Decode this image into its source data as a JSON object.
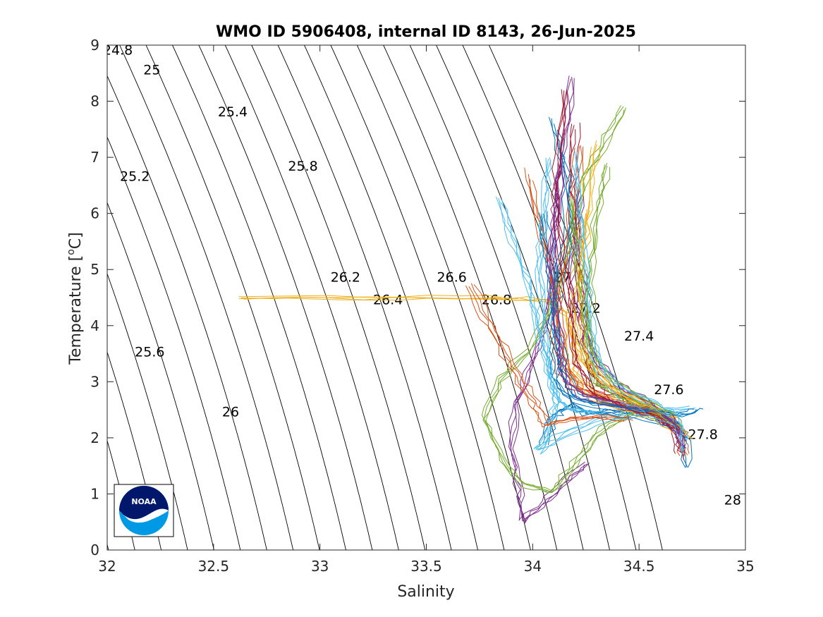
{
  "chart_data": {
    "type": "scatter",
    "title": "WMO ID 5906408, internal ID 8143, 26-Jun-2025",
    "xlabel": "Salinity",
    "ylabel": "Temperature [oC]",
    "ylabel_main": "Temperature [",
    "ylabel_sup": "o",
    "ylabel_unit": "C]",
    "xlim": [
      32,
      35
    ],
    "ylim": [
      0,
      9
    ],
    "xticks": [
      "32",
      "32.5",
      "33",
      "33.5",
      "34",
      "34.5",
      "35"
    ],
    "yticks": [
      "0",
      "1",
      "2",
      "3",
      "4",
      "5",
      "6",
      "7",
      "8",
      "9"
    ],
    "grid": false,
    "isopycnal_labels": [
      {
        "text": "24.8",
        "s": 32.05,
        "t": 8.9
      },
      {
        "text": "25",
        "s": 32.21,
        "t": 8.55
      },
      {
        "text": "25.2",
        "s": 32.13,
        "t": 6.65
      },
      {
        "text": "25.4",
        "s": 32.59,
        "t": 7.8
      },
      {
        "text": "25.6",
        "s": 32.2,
        "t": 3.52
      },
      {
        "text": "25.8",
        "s": 32.92,
        "t": 6.83
      },
      {
        "text": "26",
        "s": 32.58,
        "t": 2.45
      },
      {
        "text": "26.2",
        "s": 33.12,
        "t": 4.85
      },
      {
        "text": "26.4",
        "s": 33.32,
        "t": 4.45
      },
      {
        "text": "26.6",
        "s": 33.62,
        "t": 4.85
      },
      {
        "text": "26.8",
        "s": 33.83,
        "t": 4.45
      },
      {
        "text": "27",
        "s": 34.14,
        "t": 4.85
      },
      {
        "text": "27.2",
        "s": 34.25,
        "t": 4.3
      },
      {
        "text": "27.4",
        "s": 34.5,
        "t": 3.8
      },
      {
        "text": "27.6",
        "s": 34.64,
        "t": 2.85
      },
      {
        "text": "27.8",
        "s": 34.8,
        "t": 2.05
      },
      {
        "text": "28",
        "s": 34.94,
        "t": 0.88
      }
    ],
    "series": [
      {
        "color": "#0072BD",
        "points": [
          [
            34.05,
            1.9
          ],
          [
            34.08,
            2.3
          ],
          [
            34.12,
            2.5
          ],
          [
            34.18,
            2.6
          ],
          [
            34.25,
            2.45
          ],
          [
            34.35,
            2.5
          ],
          [
            34.5,
            2.45
          ],
          [
            34.62,
            2.3
          ],
          [
            34.7,
            2.1
          ],
          [
            34.72,
            1.5
          ]
        ]
      },
      {
        "color": "#D95319",
        "points": [
          [
            34.22,
            7.2
          ],
          [
            34.2,
            6.2
          ],
          [
            34.16,
            5.3
          ],
          [
            34.12,
            4.5
          ],
          [
            34.1,
            3.8
          ],
          [
            34.14,
            3.2
          ],
          [
            34.2,
            2.9
          ],
          [
            34.35,
            2.7
          ],
          [
            34.5,
            2.55
          ],
          [
            34.64,
            2.35
          ],
          [
            34.7,
            2.1
          ],
          [
            34.71,
            1.7
          ]
        ]
      },
      {
        "color": "#EDB120",
        "points": [
          [
            32.62,
            4.48
          ],
          [
            33.2,
            4.48
          ],
          [
            33.8,
            4.48
          ],
          [
            34.05,
            4.45
          ],
          [
            34.15,
            4.2
          ],
          [
            34.22,
            3.4
          ],
          [
            34.35,
            2.9
          ],
          [
            34.5,
            2.6
          ],
          [
            34.65,
            2.4
          ],
          [
            34.72,
            2.0
          ]
        ]
      },
      {
        "color": "#7E2F8E",
        "points": [
          [
            34.18,
            8.4
          ],
          [
            34.16,
            7.4
          ],
          [
            34.12,
            6.5
          ],
          [
            34.1,
            5.6
          ],
          [
            34.08,
            4.7
          ],
          [
            34.05,
            3.9
          ],
          [
            34.0,
            3.3
          ],
          [
            33.92,
            2.6
          ],
          [
            33.9,
            1.8
          ],
          [
            33.93,
            1.1
          ],
          [
            33.95,
            0.5
          ],
          [
            34.05,
            0.8
          ],
          [
            34.15,
            1.2
          ],
          [
            34.25,
            1.5
          ]
        ]
      },
      {
        "color": "#77AC30",
        "points": [
          [
            34.43,
            7.85
          ],
          [
            34.35,
            7.3
          ],
          [
            34.25,
            6.6
          ],
          [
            34.2,
            5.8
          ],
          [
            34.15,
            5.0
          ],
          [
            34.08,
            4.2
          ],
          [
            33.98,
            3.5
          ],
          [
            33.85,
            3.0
          ],
          [
            33.78,
            2.3
          ],
          [
            33.85,
            1.6
          ],
          [
            33.97,
            1.1
          ],
          [
            34.1,
            1.0
          ],
          [
            34.2,
            1.5
          ],
          [
            34.3,
            2.0
          ],
          [
            34.45,
            2.4
          ],
          [
            34.6,
            2.35
          ]
        ]
      },
      {
        "color": "#4DBEEE",
        "points": [
          [
            33.85,
            6.2
          ],
          [
            33.92,
            5.4
          ],
          [
            33.98,
            4.8
          ],
          [
            34.02,
            4.1
          ],
          [
            34.06,
            3.5
          ],
          [
            34.1,
            3.0
          ],
          [
            34.12,
            2.6
          ],
          [
            34.1,
            2.2
          ],
          [
            34.03,
            1.7
          ],
          [
            34.15,
            2.0
          ],
          [
            34.35,
            2.3
          ],
          [
            34.55,
            2.4
          ],
          [
            34.75,
            2.45
          ]
        ]
      },
      {
        "color": "#A2142F",
        "points": [
          [
            34.2,
            7.5
          ],
          [
            34.18,
            6.6
          ],
          [
            34.2,
            5.7
          ],
          [
            34.22,
            4.9
          ],
          [
            34.24,
            4.2
          ],
          [
            34.25,
            3.6
          ],
          [
            34.28,
            3.1
          ],
          [
            34.35,
            2.8
          ],
          [
            34.5,
            2.55
          ],
          [
            34.62,
            2.3
          ],
          [
            34.68,
            2.0
          ],
          [
            34.7,
            1.6
          ]
        ]
      },
      {
        "color": "#0072BD",
        "points": [
          [
            34.1,
            7.6
          ],
          [
            34.15,
            6.8
          ],
          [
            34.18,
            5.9
          ],
          [
            34.14,
            5.1
          ],
          [
            34.1,
            4.3
          ],
          [
            34.12,
            3.6
          ],
          [
            34.1,
            3.0
          ],
          [
            34.2,
            2.6
          ],
          [
            34.4,
            2.5
          ],
          [
            34.6,
            2.35
          ],
          [
            34.72,
            2.1
          ]
        ]
      },
      {
        "color": "#D95319",
        "points": [
          [
            33.98,
            6.7
          ],
          [
            34.02,
            5.9
          ],
          [
            34.08,
            5.0
          ],
          [
            34.12,
            4.1
          ],
          [
            34.16,
            3.4
          ],
          [
            34.22,
            2.9
          ],
          [
            34.34,
            2.7
          ],
          [
            34.48,
            2.55
          ],
          [
            34.6,
            2.4
          ]
        ]
      },
      {
        "color": "#EDB120",
        "points": [
          [
            34.3,
            7.3
          ],
          [
            34.26,
            6.4
          ],
          [
            34.24,
            5.5
          ],
          [
            34.2,
            4.6
          ],
          [
            34.18,
            3.8
          ],
          [
            34.2,
            3.2
          ],
          [
            34.3,
            2.8
          ],
          [
            34.45,
            2.6
          ],
          [
            34.58,
            2.45
          ],
          [
            34.68,
            2.2
          ]
        ]
      },
      {
        "color": "#7E2F8E",
        "points": [
          [
            34.22,
            6.4
          ],
          [
            34.2,
            5.6
          ],
          [
            34.18,
            4.8
          ],
          [
            34.22,
            4.1
          ],
          [
            34.28,
            3.5
          ],
          [
            34.4,
            3.0
          ],
          [
            34.55,
            2.65
          ],
          [
            34.66,
            2.3
          ],
          [
            34.71,
            1.9
          ]
        ]
      },
      {
        "color": "#77AC30",
        "points": [
          [
            34.35,
            6.9
          ],
          [
            34.3,
            6.0
          ],
          [
            34.28,
            5.2
          ],
          [
            34.27,
            4.4
          ],
          [
            34.26,
            3.6
          ],
          [
            34.3,
            3.0
          ],
          [
            34.45,
            2.7
          ],
          [
            34.6,
            2.45
          ],
          [
            34.7,
            2.2
          ]
        ]
      },
      {
        "color": "#4DBEEE",
        "points": [
          [
            34.08,
            7.0
          ],
          [
            34.06,
            6.2
          ],
          [
            34.04,
            5.4
          ],
          [
            34.04,
            4.6
          ],
          [
            34.06,
            3.8
          ],
          [
            34.08,
            3.2
          ],
          [
            34.12,
            2.7
          ],
          [
            34.2,
            2.5
          ],
          [
            34.35,
            2.45
          ]
        ]
      },
      {
        "color": "#A2142F",
        "points": [
          [
            34.16,
            8.2
          ],
          [
            34.14,
            7.2
          ],
          [
            34.12,
            6.3
          ],
          [
            34.14,
            5.4
          ],
          [
            34.18,
            4.6
          ],
          [
            34.2,
            3.9
          ],
          [
            34.22,
            3.3
          ],
          [
            34.3,
            2.8
          ],
          [
            34.45,
            2.55
          ],
          [
            34.58,
            2.4
          ],
          [
            34.68,
            2.15
          ]
        ]
      },
      {
        "color": "#0072BD",
        "points": [
          [
            34.05,
            6.0
          ],
          [
            34.08,
            5.2
          ],
          [
            34.1,
            4.4
          ],
          [
            34.12,
            3.7
          ],
          [
            34.15,
            3.1
          ],
          [
            34.2,
            2.75
          ],
          [
            34.3,
            2.6
          ],
          [
            34.5,
            2.5
          ],
          [
            34.7,
            2.4
          ],
          [
            34.78,
            2.5
          ]
        ]
      },
      {
        "color": "#D95319",
        "points": [
          [
            33.7,
            4.7
          ],
          [
            33.78,
            4.1
          ],
          [
            33.85,
            3.6
          ],
          [
            33.92,
            3.1
          ],
          [
            34.0,
            2.6
          ],
          [
            34.06,
            2.2
          ],
          [
            34.15,
            2.3
          ],
          [
            34.3,
            2.35
          ],
          [
            34.45,
            2.3
          ]
        ]
      },
      {
        "color": "#EDB120",
        "points": [
          [
            34.25,
            6.0
          ],
          [
            34.24,
            5.3
          ],
          [
            34.22,
            4.6
          ],
          [
            34.22,
            3.9
          ],
          [
            34.25,
            3.3
          ],
          [
            34.35,
            2.9
          ],
          [
            34.5,
            2.6
          ],
          [
            34.62,
            2.4
          ]
        ]
      },
      {
        "color": "#7E2F8E",
        "points": [
          [
            34.12,
            6.8
          ],
          [
            34.1,
            6.0
          ],
          [
            34.08,
            5.2
          ],
          [
            34.1,
            4.3
          ],
          [
            34.12,
            3.6
          ],
          [
            34.14,
            3.0
          ],
          [
            34.22,
            2.7
          ],
          [
            34.4,
            2.55
          ],
          [
            34.6,
            2.35
          ],
          [
            34.7,
            2.0
          ]
        ]
      },
      {
        "color": "#77AC30",
        "points": [
          [
            34.18,
            6.2
          ],
          [
            34.2,
            5.4
          ],
          [
            34.22,
            4.7
          ],
          [
            34.24,
            4.0
          ],
          [
            34.28,
            3.4
          ],
          [
            34.38,
            2.9
          ],
          [
            34.52,
            2.6
          ],
          [
            34.65,
            2.35
          ]
        ]
      },
      {
        "color": "#4DBEEE",
        "points": [
          [
            34.2,
            7.0
          ],
          [
            34.22,
            6.1
          ],
          [
            34.24,
            5.3
          ],
          [
            34.26,
            4.5
          ],
          [
            34.28,
            3.8
          ],
          [
            34.32,
            3.2
          ],
          [
            34.42,
            2.8
          ],
          [
            34.56,
            2.55
          ],
          [
            34.68,
            2.3
          ],
          [
            34.72,
            1.8
          ]
        ]
      }
    ]
  }
}
